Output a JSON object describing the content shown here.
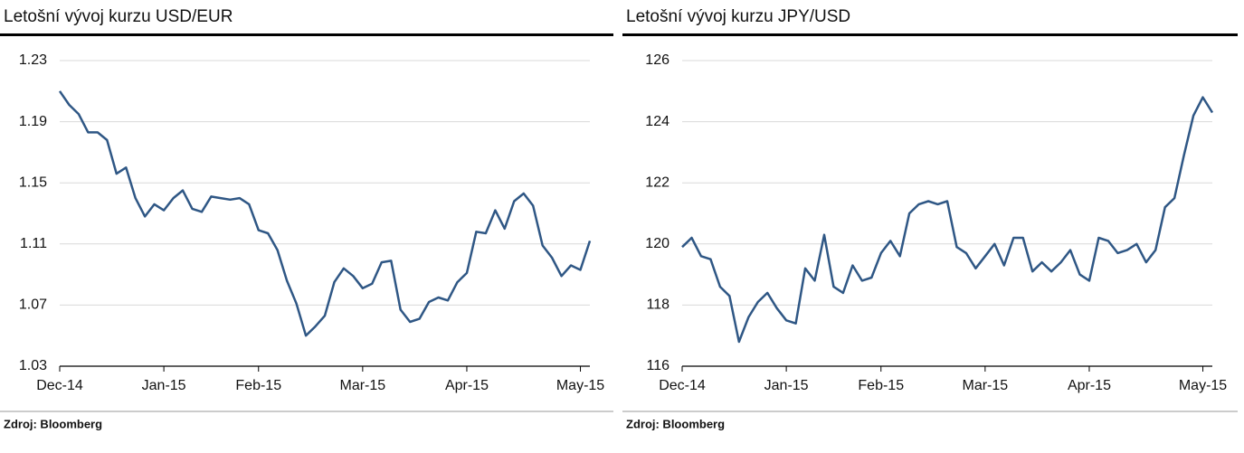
{
  "chart_data": [
    {
      "type": "line",
      "title": "Letošní vývoj kurzu USD/EUR",
      "source": "Zdroj: Bloomberg",
      "categories": [
        "Dec-14",
        null,
        null,
        null,
        null,
        null,
        null,
        null,
        null,
        null,
        null,
        "Jan-15",
        null,
        null,
        null,
        null,
        null,
        null,
        null,
        null,
        null,
        "Feb-15",
        null,
        null,
        null,
        null,
        null,
        null,
        null,
        null,
        null,
        null,
        "Mar-15",
        null,
        null,
        null,
        null,
        null,
        null,
        null,
        null,
        null,
        null,
        "Apr-15",
        null,
        null,
        null,
        null,
        null,
        null,
        null,
        null,
        null,
        null,
        null,
        "May-15",
        null
      ],
      "values": [
        1.21,
        1.201,
        1.195,
        1.183,
        1.183,
        1.178,
        1.156,
        1.16,
        1.14,
        1.128,
        1.136,
        1.132,
        1.14,
        1.145,
        1.133,
        1.131,
        1.141,
        1.14,
        1.139,
        1.14,
        1.136,
        1.119,
        1.117,
        1.106,
        1.086,
        1.071,
        1.05,
        1.056,
        1.063,
        1.085,
        1.094,
        1.089,
        1.081,
        1.084,
        1.098,
        1.099,
        1.067,
        1.059,
        1.061,
        1.072,
        1.075,
        1.073,
        1.085,
        1.091,
        1.118,
        1.117,
        1.132,
        1.12,
        1.138,
        1.143,
        1.135,
        1.109,
        1.101,
        1.089,
        1.096,
        1.093,
        1.112
      ],
      "color": "#2f5785",
      "ylim": [
        1.03,
        1.23
      ],
      "yticks": [
        1.03,
        1.07,
        1.11,
        1.15,
        1.19,
        1.23
      ],
      "grid": true
    },
    {
      "type": "line",
      "title": "Letošní vývoj kurzu JPY/USD",
      "source": "Zdroj: Bloomberg",
      "categories": [
        "Dec-14",
        null,
        null,
        null,
        null,
        null,
        null,
        null,
        null,
        null,
        null,
        "Jan-15",
        null,
        null,
        null,
        null,
        null,
        null,
        null,
        null,
        null,
        "Feb-15",
        null,
        null,
        null,
        null,
        null,
        null,
        null,
        null,
        null,
        null,
        "Mar-15",
        null,
        null,
        null,
        null,
        null,
        null,
        null,
        null,
        null,
        null,
        "Apr-15",
        null,
        null,
        null,
        null,
        null,
        null,
        null,
        null,
        null,
        null,
        null,
        "May-15",
        null
      ],
      "values": [
        119.9,
        120.2,
        119.6,
        119.5,
        118.6,
        118.3,
        116.8,
        117.6,
        118.1,
        118.4,
        117.9,
        117.5,
        117.4,
        119.2,
        118.8,
        120.3,
        118.6,
        118.4,
        119.3,
        118.8,
        118.9,
        119.7,
        120.1,
        119.6,
        121.0,
        121.3,
        121.4,
        121.3,
        121.4,
        119.9,
        119.7,
        119.2,
        119.6,
        120.0,
        119.3,
        120.2,
        120.2,
        119.1,
        119.4,
        119.1,
        119.4,
        119.8,
        119.0,
        118.8,
        120.2,
        120.1,
        119.7,
        119.8,
        120.0,
        119.4,
        119.8,
        121.2,
        121.5,
        122.9,
        124.2,
        124.8,
        124.3
      ],
      "color": "#2f5785",
      "ylim": [
        116,
        126
      ],
      "yticks": [
        116,
        118,
        120,
        122,
        124,
        126
      ],
      "grid": true
    }
  ]
}
